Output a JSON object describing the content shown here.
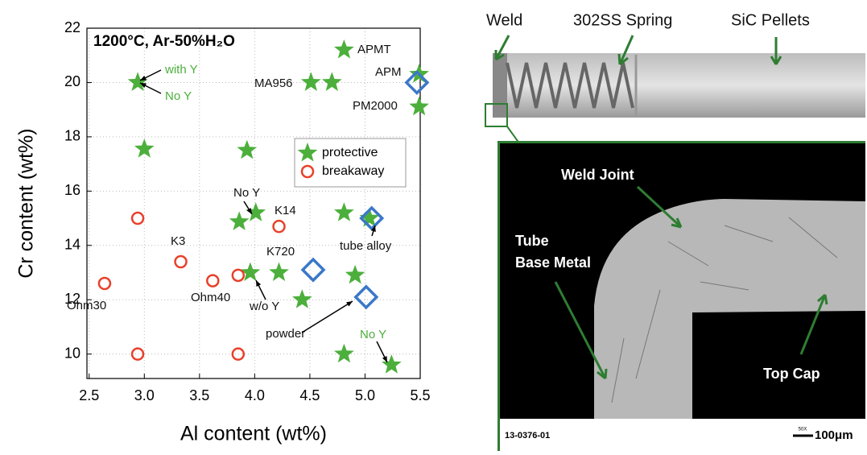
{
  "chart_data": {
    "type": "scatter",
    "title": "1200°C, Ar-50%H₂O",
    "x_label": "Al content (wt%)",
    "y_label": "Cr content (wt%)",
    "xlim": [
      2.48,
      5.5
    ],
    "ylim": [
      9.1,
      22
    ],
    "xticks": [
      2.5,
      {
        "value": 3,
        "label": "3.0"
      },
      3.5,
      {
        "value": 4,
        "label": "4.0"
      },
      4.5,
      {
        "value": 5,
        "label": "5.0"
      },
      5.5
    ],
    "yticks": [
      10,
      12,
      14,
      16,
      18,
      20,
      22
    ],
    "grid": true,
    "series": [
      {
        "name": "protective",
        "marker": "star",
        "color": "#4caf3c",
        "x": [
          2.94,
          3.0,
          3.93,
          3.86,
          4.01,
          3.96,
          4.22,
          4.43,
          4.51,
          4.7,
          4.81,
          4.81,
          4.91,
          4.81,
          5.24,
          5.49,
          5.49,
          5.04
        ],
        "y": [
          20.0,
          17.55,
          17.5,
          14.87,
          15.2,
          13.0,
          13.0,
          12.0,
          20.0,
          20.0,
          21.2,
          15.2,
          12.9,
          10.0,
          9.6,
          20.3,
          19.1,
          15.0
        ]
      },
      {
        "name": "breakaway",
        "marker": "circle",
        "color": "#e8402a",
        "x": [
          2.64,
          2.94,
          2.94,
          3.33,
          3.62,
          3.85,
          3.85,
          4.22
        ],
        "y": [
          12.6,
          15.0,
          10.0,
          13.4,
          12.7,
          12.9,
          10.0,
          14.7
        ]
      },
      {
        "marker": "diamond",
        "color": "#3a78c8",
        "x": [
          5.47,
          4.53,
          5.01,
          5.06
        ],
        "y": [
          20.0,
          13.1,
          12.1,
          15.0
        ]
      }
    ],
    "annotations": [
      {
        "text": "with Y",
        "color": "#4caf3c"
      },
      {
        "text": "No Y",
        "color": "#4caf3c"
      },
      {
        "text": "APMT",
        "color": "#111"
      },
      {
        "text": "APM",
        "color": "#111"
      },
      {
        "text": "MA956",
        "color": "#111"
      },
      {
        "text": "PM2000",
        "color": "#111"
      },
      {
        "text": "No Y",
        "color": "#111"
      },
      {
        "text": "K14",
        "color": "#111"
      },
      {
        "text": "K3",
        "color": "#111"
      },
      {
        "text": "K720",
        "color": "#111"
      },
      {
        "text": "tube alloy",
        "color": "#111"
      },
      {
        "text": "Ohm30",
        "color": "#111"
      },
      {
        "text": "Ohm40",
        "color": "#111"
      },
      {
        "text": "w/o Y",
        "color": "#111"
      },
      {
        "text": "powder",
        "color": "#111"
      },
      {
        "text": "No Y",
        "color": "#4caf3c"
      }
    ]
  },
  "photo": {
    "top_labels": [
      "Weld",
      "302SS Spring",
      "SiC Pellets"
    ],
    "micrograph_labels": [
      "Weld Joint",
      "Tube",
      "Base Metal",
      "Top Cap"
    ],
    "sample_id": "13-0376-01",
    "magnification": "50X",
    "scale_bar": "100μm"
  }
}
